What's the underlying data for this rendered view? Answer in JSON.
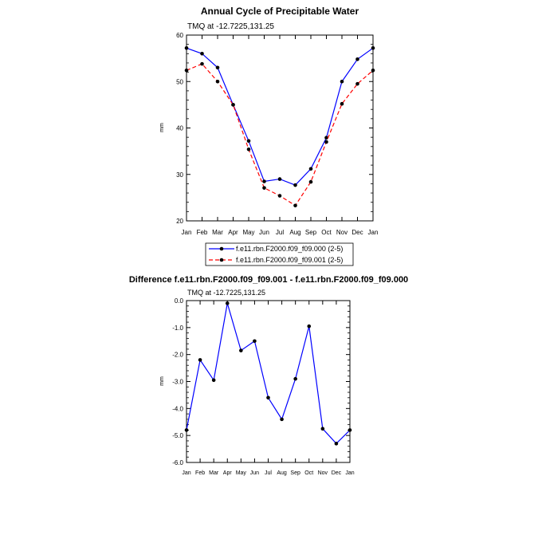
{
  "chart_data": [
    {
      "type": "line",
      "title": "Annual Cycle of Precipitable Water",
      "subtitle": "TMQ at -12.7225,131.25",
      "ylabel": "mm",
      "categories": [
        "Jan",
        "Feb",
        "Mar",
        "Apr",
        "May",
        "Jun",
        "Jul",
        "Aug",
        "Sep",
        "Oct",
        "Nov",
        "Dec",
        "Jan"
      ],
      "ylim": [
        20,
        60
      ],
      "yticks": [
        20,
        30,
        40,
        50,
        60
      ],
      "ytick_labels": [
        "20",
        "30",
        "40",
        "50",
        "60"
      ],
      "series": [
        {
          "name": "f.e11.rbn.F2000.f09_f09.000 (2-5)",
          "color": "#0000ff",
          "dash": "solid",
          "values": [
            57.2,
            56.0,
            53.0,
            45.0,
            37.2,
            28.5,
            29.0,
            27.7,
            31.2,
            37.9,
            50.0,
            54.8,
            57.2
          ]
        },
        {
          "name": "f.e11.rbn.F2000.f09_f09.001 (2-5)",
          "color": "#ff0000",
          "dash": "dashed",
          "values": [
            52.4,
            53.8,
            50.0,
            45.0,
            35.4,
            27.1,
            25.4,
            23.3,
            28.4,
            37.0,
            45.2,
            49.5,
            52.4
          ]
        }
      ]
    },
    {
      "type": "line",
      "title": "Difference f.e11.rbn.F2000.f09_f09.001 - f.e11.rbn.F2000.f09_f09.000",
      "subtitle": "TMQ at -12.7225,131.25",
      "ylabel": "mm",
      "categories": [
        "Jan",
        "Feb",
        "Mar",
        "Apr",
        "May",
        "Jun",
        "Jul",
        "Aug",
        "Sep",
        "Oct",
        "Nov",
        "Dec",
        "Jan"
      ],
      "ylim": [
        -6.0,
        0.0
      ],
      "yticks": [
        -6,
        -5,
        -4,
        -3,
        -2,
        -1,
        0
      ],
      "ytick_labels": [
        "-6.0",
        "-5.0",
        "-4.0",
        "-3.0",
        "-2.0",
        "-1.0",
        "0.0"
      ],
      "series": [
        {
          "name": "difference",
          "color": "#0000ff",
          "values": [
            -4.8,
            -2.2,
            -2.95,
            -0.1,
            -1.85,
            -1.5,
            -3.6,
            -4.4,
            -2.9,
            -0.95,
            -4.75,
            -5.3,
            -4.8
          ]
        }
      ]
    }
  ]
}
